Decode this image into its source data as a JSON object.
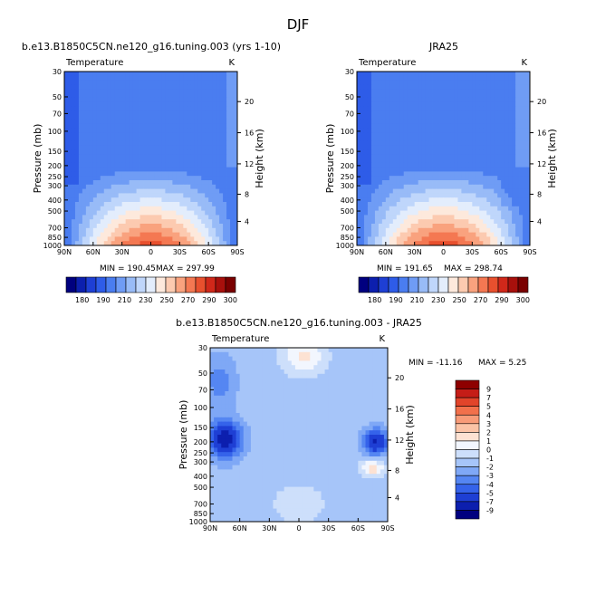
{
  "figure_title": "DJF",
  "colors": {
    "temp_scale": [
      "#00007f",
      "#0c1fae",
      "#1e3fd4",
      "#2e5ce8",
      "#4a7df0",
      "#6f9cf5",
      "#98bbf7",
      "#bfd6fb",
      "#e3edfc",
      "#fde9dc",
      "#fccab0",
      "#f9a27e",
      "#f47852",
      "#e8502e",
      "#d0281a",
      "#a8100c",
      "#7a0000"
    ],
    "diff_scale": [
      "#00007f",
      "#0c1fae",
      "#1e3fd4",
      "#3563ea",
      "#5586f2",
      "#7fa8f6",
      "#a6c5f9",
      "#cddffb",
      "#f2f6fe",
      "#fde2d3",
      "#fbc3a6",
      "#f89b78",
      "#f2704b",
      "#e2442a",
      "#c51d17",
      "#8e0000"
    ]
  },
  "chart_data": [
    {
      "type": "heatmap",
      "panel": "model",
      "title": "b.e13.B1850C5CN.ne120_g16.tuning.003 (yrs 1-10)",
      "subtitle": "Temperature",
      "units": "K",
      "ylabel": "Pressure (mb)",
      "ylabel_right": "Height (km)",
      "x_ticks": [
        "90N",
        "60N",
        "30N",
        "0",
        "30S",
        "60S",
        "90S"
      ],
      "y_ticks": [
        "30",
        "50",
        "70",
        "100",
        "150",
        "200",
        "250",
        "300",
        "400",
        "500",
        "700",
        "850",
        "1000"
      ],
      "y_ticks_right": [
        "20",
        "16",
        "12",
        "8",
        "4"
      ],
      "min_label": "MIN = 190.45",
      "max_label": "MAX = 297.99",
      "min": 190.45,
      "max": 297.99,
      "colorbar_labels": [
        "180",
        "190",
        "210",
        "230",
        "250",
        "270",
        "290",
        "300"
      ],
      "levels": [
        180,
        185,
        190,
        200,
        210,
        220,
        230,
        240,
        250,
        260,
        270,
        280,
        290,
        295,
        300
      ]
    },
    {
      "type": "heatmap",
      "panel": "obs",
      "title": "JRA25",
      "subtitle": "Temperature",
      "units": "K",
      "ylabel": "Pressure (mb)",
      "ylabel_right": "Height (km)",
      "x_ticks": [
        "90N",
        "60N",
        "30N",
        "0",
        "30S",
        "60S",
        "90S"
      ],
      "y_ticks": [
        "30",
        "50",
        "70",
        "100",
        "150",
        "200",
        "250",
        "300",
        "400",
        "500",
        "700",
        "850",
        "1000"
      ],
      "y_ticks_right": [
        "20",
        "16",
        "12",
        "8",
        "4"
      ],
      "min_label": "MIN = 191.65",
      "max_label": "MAX = 298.74",
      "min": 191.65,
      "max": 298.74,
      "colorbar_labels": [
        "180",
        "190",
        "210",
        "230",
        "250",
        "270",
        "290",
        "300"
      ],
      "levels": [
        180,
        185,
        190,
        200,
        210,
        220,
        230,
        240,
        250,
        260,
        270,
        280,
        290,
        295,
        300
      ]
    },
    {
      "type": "heatmap",
      "panel": "diff",
      "title": "b.e13.B1850C5CN.ne120_g16.tuning.003 - JRA25",
      "subtitle": "Temperature",
      "units": "K",
      "ylabel": "Pressure (mb)",
      "ylabel_right": "Height (km)",
      "x_ticks": [
        "90N",
        "60N",
        "30N",
        "0",
        "30S",
        "60S",
        "90S"
      ],
      "y_ticks": [
        "30",
        "50",
        "70",
        "100",
        "150",
        "200",
        "250",
        "300",
        "400",
        "500",
        "700",
        "850",
        "1000"
      ],
      "y_ticks_right": [
        "20",
        "16",
        "12",
        "8",
        "4"
      ],
      "min_label": "MIN = -11.16",
      "max_label": "MAX =    5.25",
      "min": -11.16,
      "max": 5.25,
      "colorbar_labels": [
        "9",
        "7",
        "5",
        "4",
        "3",
        "2",
        "1",
        "0",
        "-1",
        "-2",
        "-3",
        "-4",
        "-5",
        "-7",
        "-9"
      ],
      "levels": [
        -9,
        -7,
        -5,
        -4,
        -3,
        -2,
        -1,
        0,
        1,
        2,
        3,
        4,
        5,
        7,
        9
      ]
    }
  ]
}
